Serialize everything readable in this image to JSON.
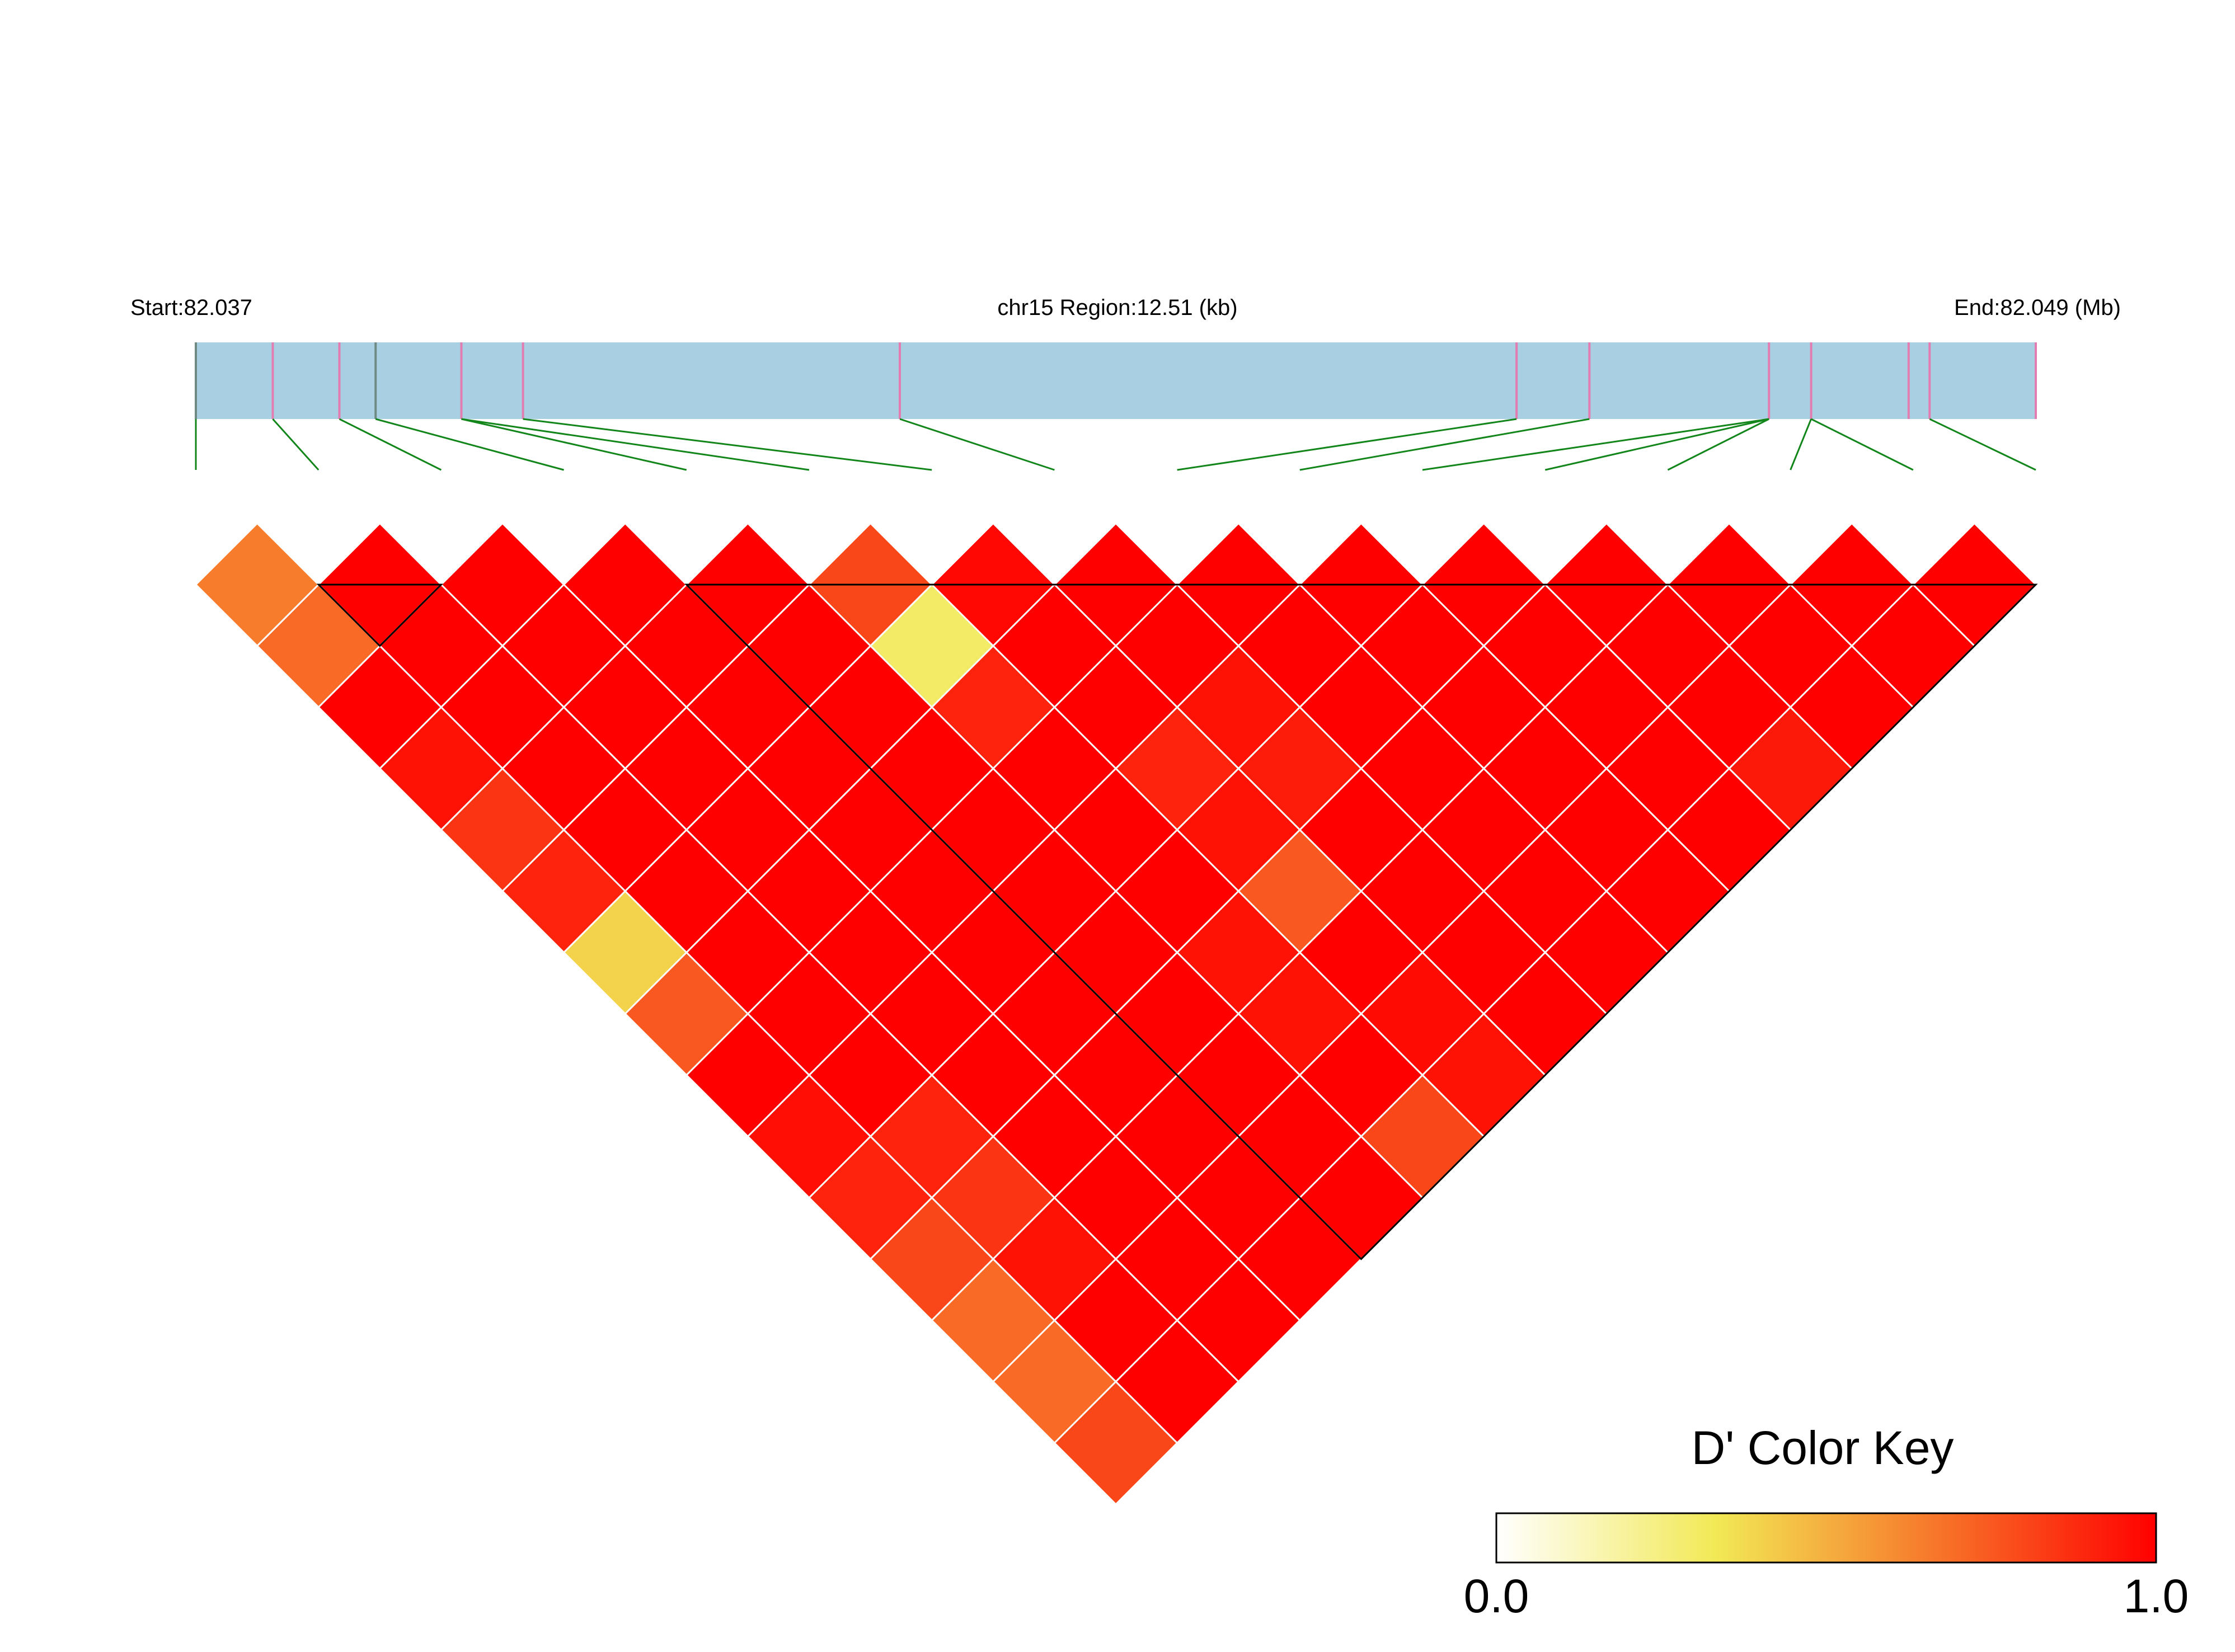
{
  "header": {
    "start_label": "Start:82.037",
    "region_label": "chr15 Region:12.51 (kb)",
    "end_label": "End:82.049 (Mb)"
  },
  "colors": {
    "region_bar": "#a8cfe2",
    "snp_tick": "#e37cb0",
    "snp_tick_grey": "#6f8a83",
    "connector": "#12861a",
    "cell_border": "#ffffff",
    "block_outline": "#000000"
  },
  "chart_data": {
    "type": "heatmap",
    "title": "",
    "region": {
      "chrom": "chr15",
      "start_mb": 82.037,
      "end_mb": 82.049,
      "length_kb": 12.51
    },
    "snp_positions_fraction": [
      0,
      0.0418,
      0.078,
      0.0977,
      0.1443,
      0.1778,
      0.3826,
      0.7178,
      0.7574,
      0.855,
      0.8779,
      0.9309,
      0.9423,
      1.0
    ],
    "snp_groups": [
      [
        0
      ],
      [
        1
      ],
      [
        2
      ],
      [
        3
      ],
      [
        4
      ],
      [
        4
      ],
      [
        5
      ],
      [
        6
      ],
      [
        7
      ],
      [
        8
      ],
      [
        9
      ],
      [
        9
      ],
      [
        9
      ],
      [
        10
      ],
      [
        10
      ],
      [
        12
      ]
    ],
    "snp_grey_ticks": [
      0,
      3
    ],
    "snp_count": 16,
    "dprime_rows_by_distance": [
      [
        0.65,
        1,
        1,
        1,
        1,
        0.8,
        0.98,
        1,
        1,
        1,
        1,
        1,
        1,
        1,
        1
      ],
      [
        0.7,
        1,
        1,
        1,
        1,
        0.3,
        1,
        1,
        1,
        1,
        1,
        1,
        1,
        1
      ],
      [
        1,
        1,
        1,
        1,
        1,
        0.9,
        1,
        0.95,
        1,
        1,
        1,
        1,
        1
      ],
      [
        0.95,
        1,
        1,
        1,
        1,
        1,
        0.9,
        0.92,
        1,
        1,
        1,
        0.93
      ],
      [
        0.85,
        1,
        1,
        1,
        1,
        1,
        0.95,
        1,
        1,
        1,
        1
      ],
      [
        0.9,
        1,
        1,
        1,
        1,
        1,
        0.75,
        1,
        1,
        1
      ],
      [
        0.4,
        1,
        1,
        1,
        1,
        0.95,
        1,
        1,
        1
      ],
      [
        0.75,
        1,
        1,
        1,
        1,
        0.95,
        0.97,
        1
      ],
      [
        1,
        1,
        1,
        1,
        1,
        1,
        0.95
      ],
      [
        0.96,
        0.9,
        1,
        1,
        1,
        0.8
      ],
      [
        0.9,
        0.85,
        1,
        1,
        1
      ],
      [
        0.8,
        0.95,
        1,
        1
      ],
      [
        0.7,
        1,
        1
      ],
      [
        0.7,
        1
      ],
      [
        0.8
      ]
    ],
    "ld_blocks": [
      [
        1,
        2
      ],
      [
        4,
        15
      ]
    ],
    "color_key": {
      "title": "D' Color Key",
      "min_label": "0.0",
      "max_label": "1.0",
      "stops": [
        "#ffffff",
        "#f2e955",
        "#f7762a",
        "#ff0000"
      ]
    }
  }
}
